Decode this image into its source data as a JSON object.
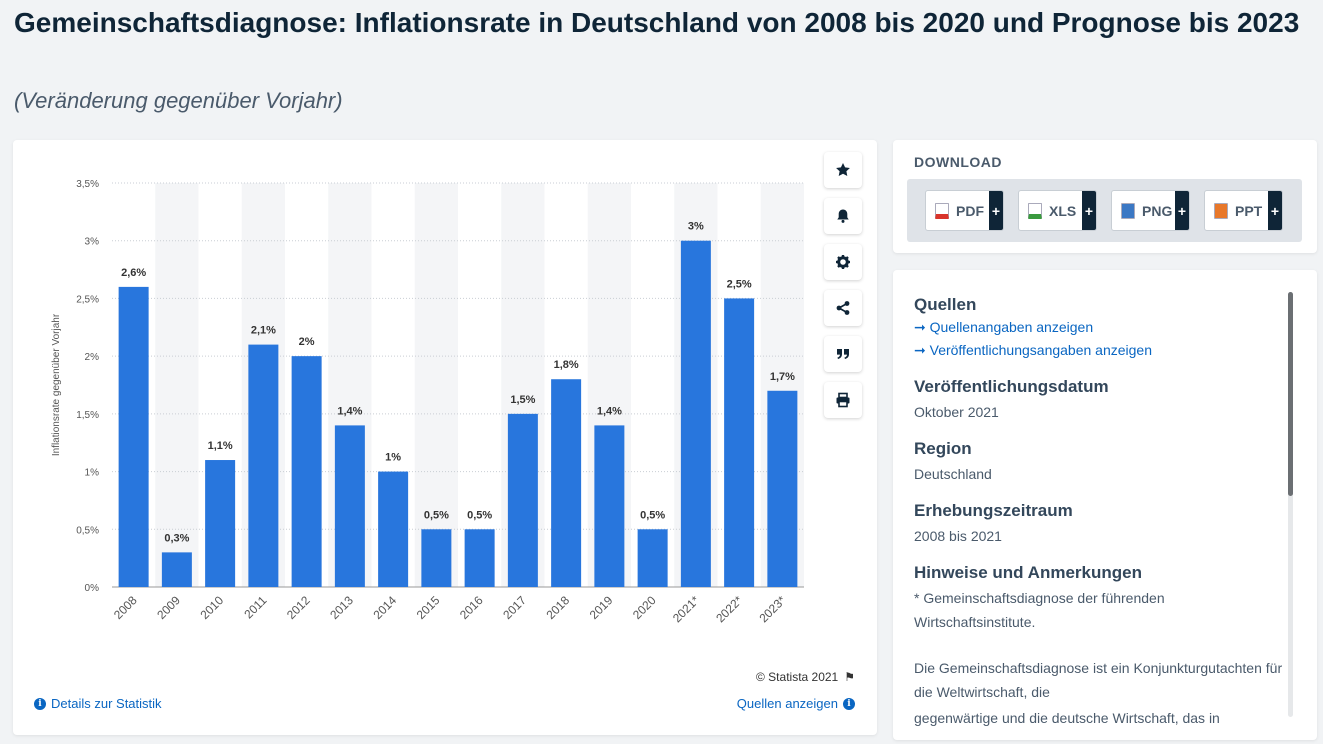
{
  "page": {
    "title": "Gemeinschaftsdiagnose: Inflationsrate in Deutschland von 2008 bis 2020 und Prognose bis 2023",
    "subtitle": "(Veränderung gegenüber Vorjahr)"
  },
  "chart_data": {
    "type": "bar",
    "ylabel": "Inflationsrate gegenüber Vorjahr",
    "xlabel": "",
    "ylim": [
      0,
      3.5
    ],
    "yticks": [
      "0%",
      "0,5%",
      "1%",
      "1,5%",
      "2%",
      "2,5%",
      "3%",
      "3,5%"
    ],
    "ytick_values": [
      0,
      0.5,
      1,
      1.5,
      2,
      2.5,
      3,
      3.5
    ],
    "categories": [
      "2008",
      "2009",
      "2010",
      "2011",
      "2012",
      "2013",
      "2014",
      "2015",
      "2016",
      "2017",
      "2018",
      "2019",
      "2020",
      "2021*",
      "2022*",
      "2023*"
    ],
    "values": [
      2.6,
      0.3,
      1.1,
      2.1,
      2.0,
      1.4,
      1.0,
      0.5,
      0.5,
      1.5,
      1.8,
      1.4,
      0.5,
      3.0,
      2.5,
      1.7
    ],
    "data_labels": [
      "2,6%",
      "0,3%",
      "1,1%",
      "2,1%",
      "2%",
      "1,4%",
      "1%",
      "0,5%",
      "0,5%",
      "1,5%",
      "1,8%",
      "1,4%",
      "0,5%",
      "3%",
      "2,5%",
      "1,7%"
    ],
    "grid": true,
    "bar_color": "#2876dd",
    "band_color": "#f4f5f7"
  },
  "chart_footer": {
    "copyright": "© Statista 2021",
    "details_link": "Details zur Statistik",
    "sources_link": "Quellen anzeigen"
  },
  "tools": [
    {
      "icon": "star-icon"
    },
    {
      "icon": "bell-icon"
    },
    {
      "icon": "gear-icon"
    },
    {
      "icon": "share-icon"
    },
    {
      "icon": "quote-icon"
    },
    {
      "icon": "print-icon"
    }
  ],
  "download": {
    "heading": "DOWNLOAD",
    "buttons": [
      {
        "label": "PDF",
        "icon": "pdf-file-icon",
        "color": "#d9342b"
      },
      {
        "label": "XLS",
        "icon": "xls-file-icon",
        "color": "#3a9a3e"
      },
      {
        "label": "PNG",
        "icon": "png-file-icon",
        "color": "#3b78c4"
      },
      {
        "label": "PPT",
        "icon": "ppt-file-icon",
        "color": "#e8782a"
      }
    ],
    "plus": "+"
  },
  "info": {
    "sources_heading": "Quellen",
    "sources_link_1": "Quellenangaben anzeigen",
    "sources_link_2": "Veröffentlichungsangaben anzeigen",
    "pubdate_heading": "Veröffentlichungsdatum",
    "pubdate": "Oktober 2021",
    "region_heading": "Region",
    "region": "Deutschland",
    "period_heading": "Erhebungszeitraum",
    "period": "2008 bis 2021",
    "notes_heading": "Hinweise und Anmerkungen",
    "notes_1": "* Gemeinschaftsdiagnose der führenden Wirtschaftsinstitute.",
    "notes_2": "Die Gemeinschaftsdiagnose ist ein Konjunkturgutachten für die Weltwirtschaft, die",
    "notes_3": "gegenwärtige und die deutsche Wirtschaft, das in"
  },
  "arrow": "➞"
}
